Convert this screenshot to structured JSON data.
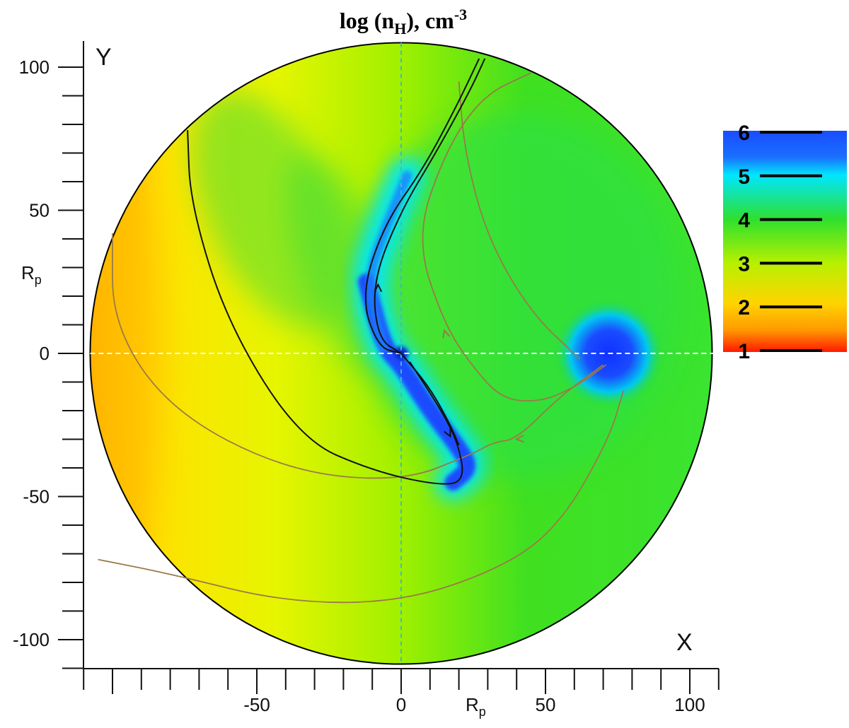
{
  "chart_data": {
    "type": "heatmap",
    "title": {
      "main": "log (n",
      "sub": "H",
      "after": "), cm",
      "sup": "-3"
    },
    "x_axis": {
      "letter": "X",
      "unit_main": "R",
      "unit_sub": "p",
      "range": [
        -110,
        110
      ],
      "tick_labels": [
        {
          "v": -50,
          "t": "-50"
        },
        {
          "v": 0,
          "t": "0"
        },
        {
          "v": 50,
          "t": "50"
        },
        {
          "v": 100,
          "t": "100"
        }
      ]
    },
    "y_axis": {
      "letter": "Y",
      "unit_main": "R",
      "unit_sub": "p",
      "range": [
        -110,
        110
      ],
      "tick_labels": [
        {
          "v": 100,
          "t": "100"
        },
        {
          "v": 50,
          "t": "50"
        },
        {
          "v": 0,
          "t": "0"
        },
        {
          "v": -50,
          "t": "-50"
        },
        {
          "v": -100,
          "t": "-100"
        }
      ]
    },
    "domain": {
      "shape": "disk",
      "radius": 108
    },
    "colorbar": {
      "labels": [
        "6",
        "5",
        "4",
        "3",
        "2",
        "1"
      ],
      "colors": [
        "#1a4cff",
        "#00e6ff",
        "#2ee02e",
        "#b8f000",
        "#ffd400",
        "#ff1a00"
      ]
    },
    "features": {
      "planet_center": [
        0,
        0
      ],
      "star_blob": [
        72,
        0
      ],
      "dense_stream": [
        [
          2,
          62
        ],
        [
          -5,
          45
        ],
        [
          -12,
          25
        ],
        [
          -6,
          2
        ],
        [
          0,
          -4
        ],
        [
          10,
          -20
        ],
        [
          20,
          -33
        ],
        [
          24,
          -40
        ],
        [
          18,
          -45
        ]
      ]
    },
    "streamlines_black": [
      [
        [
          29,
          103
        ],
        [
          24,
          92
        ],
        [
          12,
          70
        ],
        [
          0,
          50
        ],
        [
          -10,
          25
        ],
        [
          -8,
          5
        ],
        [
          0,
          0
        ]
      ],
      [
        [
          27,
          103
        ],
        [
          20,
          88
        ],
        [
          8,
          65
        ],
        [
          -6,
          45
        ],
        [
          -14,
          20
        ],
        [
          -8,
          2
        ],
        [
          0,
          0
        ]
      ],
      [
        [
          0,
          0
        ],
        [
          10,
          -12
        ],
        [
          17,
          -25
        ],
        [
          20,
          -32
        ]
      ],
      [
        [
          3,
          -3
        ],
        [
          14,
          -20
        ],
        [
          20,
          -32
        ],
        [
          22,
          -45
        ],
        [
          12,
          -46
        ],
        [
          -10,
          -41
        ],
        [
          -35,
          -30
        ],
        [
          -60,
          10
        ],
        [
          -73,
          52
        ],
        [
          -74,
          78
        ]
      ]
    ],
    "streamlines_brown": [
      [
        [
          62,
          -2
        ],
        [
          45,
          14
        ],
        [
          30,
          40
        ],
        [
          22,
          70
        ],
        [
          20,
          95
        ]
      ],
      [
        [
          71,
          -4
        ],
        [
          60,
          -12
        ],
        [
          48,
          -17
        ],
        [
          35,
          -16
        ],
        [
          25,
          -5
        ],
        [
          15,
          10
        ],
        [
          5,
          40
        ],
        [
          15,
          70
        ],
        [
          28,
          90
        ],
        [
          45,
          98
        ]
      ],
      [
        [
          70,
          -4
        ],
        [
          55,
          -15
        ],
        [
          40,
          -30
        ],
        [
          32,
          -31
        ],
        [
          25,
          -35
        ],
        [
          0,
          -45
        ],
        [
          -40,
          -41
        ],
        [
          -80,
          -20
        ],
        [
          -100,
          10
        ],
        [
          -100,
          42
        ]
      ],
      [
        [
          77,
          -13
        ],
        [
          72,
          -30
        ],
        [
          55,
          -60
        ],
        [
          35,
          -75
        ],
        [
          0,
          -87
        ],
        [
          -40,
          -87
        ],
        [
          -80,
          -77
        ],
        [
          -105,
          -72
        ]
      ]
    ]
  }
}
